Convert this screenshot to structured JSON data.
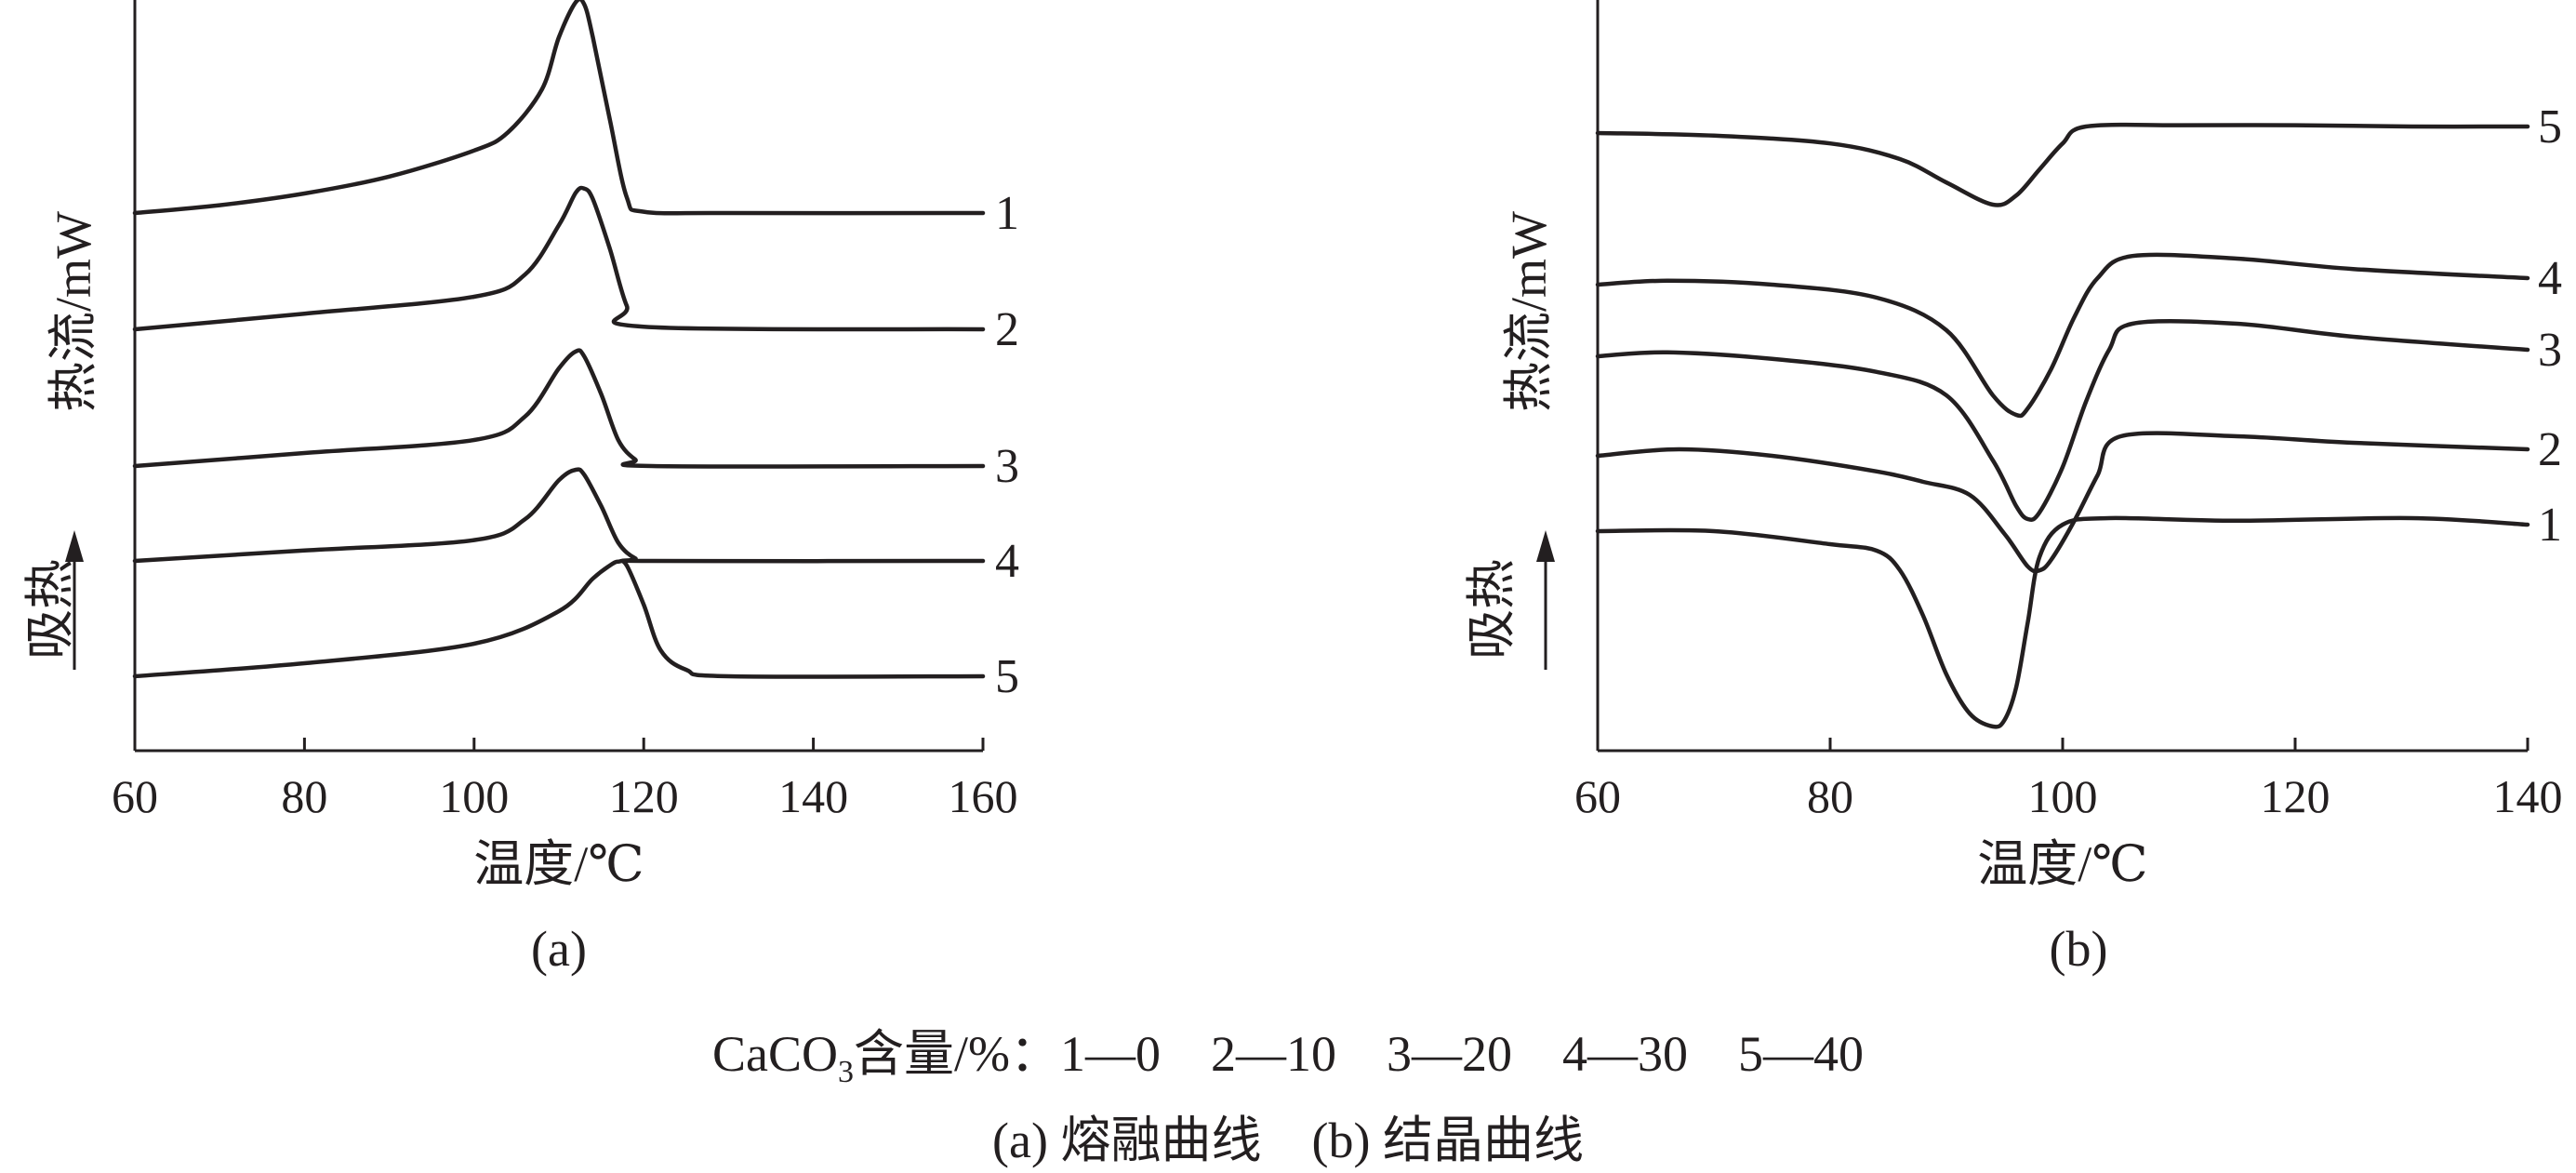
{
  "chart_data": [
    {
      "type": "line",
      "caption": "(a)",
      "xlabel": "温度/℃",
      "ylabel": "热流/mW",
      "direction_label": "吸热",
      "xlim": [
        60,
        160
      ],
      "xticks": [
        "60",
        "80",
        "100",
        "120",
        "140",
        "160"
      ],
      "series": [
        {
          "name": "1",
          "x": [
            60,
            70,
            80,
            90,
            100,
            104,
            108,
            110,
            112,
            113,
            114,
            116,
            118,
            120,
            130,
            160
          ],
          "y": [
            0,
            0.06,
            0.15,
            0.28,
            0.48,
            0.62,
            0.95,
            1.35,
            1.62,
            1.6,
            1.35,
            0.72,
            0.12,
            0.01,
            0,
            0
          ]
        },
        {
          "name": "2",
          "x": [
            60,
            80,
            100,
            106,
            110,
            112,
            113,
            114,
            116,
            118,
            120,
            160
          ],
          "y": [
            0,
            0.12,
            0.25,
            0.42,
            0.8,
            1.05,
            1.08,
            1.0,
            0.62,
            0.18,
            0.02,
            0
          ]
        },
        {
          "name": "3",
          "x": [
            60,
            80,
            100,
            106,
            110,
            112,
            113,
            115,
            117,
            119,
            121,
            160
          ],
          "y": [
            0,
            0.1,
            0.2,
            0.38,
            0.75,
            0.88,
            0.84,
            0.55,
            0.2,
            0.05,
            0,
            0
          ]
        },
        {
          "name": "4",
          "x": [
            60,
            80,
            100,
            106,
            110,
            112,
            113,
            115,
            117,
            119,
            121,
            160
          ],
          "y": [
            0,
            0.08,
            0.16,
            0.32,
            0.62,
            0.7,
            0.66,
            0.42,
            0.14,
            0.02,
            0,
            0
          ]
        },
        {
          "name": "5",
          "x": [
            60,
            80,
            100,
            110,
            114,
            116,
            117,
            118,
            120,
            122,
            125,
            130,
            160
          ],
          "y": [
            0,
            0.1,
            0.25,
            0.5,
            0.75,
            0.85,
            0.88,
            0.85,
            0.55,
            0.2,
            0.05,
            0,
            0
          ]
        }
      ]
    },
    {
      "type": "line",
      "caption": "(b)",
      "xlabel": "温度/℃",
      "ylabel": "热流/mW",
      "direction_label": "吸热",
      "xlim": [
        60,
        140
      ],
      "xticks": [
        "60",
        "80",
        "100",
        "120",
        "140"
      ],
      "series": [
        {
          "name": "5",
          "x": [
            60,
            70,
            80,
            86,
            90,
            94,
            96,
            98,
            100,
            102,
            110,
            120,
            130,
            140
          ],
          "y": [
            0,
            -0.02,
            -0.08,
            -0.2,
            -0.38,
            -0.55,
            -0.48,
            -0.28,
            -0.08,
            0.05,
            0.06,
            0.06,
            0.05,
            0.05
          ]
        },
        {
          "name": "4",
          "x": [
            60,
            66,
            75,
            84,
            90,
            94,
            96,
            97,
            99,
            101,
            103,
            106,
            115,
            125,
            140
          ],
          "y": [
            0,
            0.03,
            0.0,
            -0.1,
            -0.35,
            -0.85,
            -1.0,
            -0.95,
            -0.65,
            -0.25,
            0.05,
            0.22,
            0.2,
            0.12,
            0.05
          ]
        },
        {
          "name": "3",
          "x": [
            60,
            66,
            75,
            84,
            90,
            94,
            96,
            97,
            98,
            100,
            102,
            104,
            106,
            115,
            125,
            140
          ],
          "y": [
            0,
            0.03,
            -0.02,
            -0.12,
            -0.3,
            -0.8,
            -1.15,
            -1.25,
            -1.2,
            -0.85,
            -0.35,
            0.05,
            0.25,
            0.25,
            0.15,
            0.05
          ]
        },
        {
          "name": "2",
          "x": [
            60,
            67,
            75,
            84,
            88,
            92,
            95,
            97,
            98,
            99,
            101,
            103,
            105,
            115,
            125,
            140
          ],
          "y": [
            0,
            0.05,
            0.0,
            -0.12,
            -0.2,
            -0.3,
            -0.6,
            -0.85,
            -0.88,
            -0.8,
            -0.5,
            -0.15,
            0.15,
            0.15,
            0.1,
            0.05
          ]
        },
        {
          "name": "1",
          "x": [
            60,
            70,
            80,
            84,
            86,
            88,
            90,
            92,
            94,
            95,
            96,
            97,
            98,
            100,
            104,
            115,
            130,
            140
          ],
          "y": [
            0,
            0.0,
            -0.1,
            -0.15,
            -0.3,
            -0.65,
            -1.1,
            -1.4,
            -1.5,
            -1.45,
            -1.2,
            -0.7,
            -0.2,
            0.05,
            0.1,
            0.08,
            0.1,
            0.05
          ]
        }
      ]
    }
  ],
  "legend_line": {
    "prefix": "CaCO",
    "subscript": "3",
    "text": "含量/%：1—0　2—10　3—20　4—30　5—40"
  },
  "caption_line": "(a) 熔融曲线　(b) 结晶曲线"
}
